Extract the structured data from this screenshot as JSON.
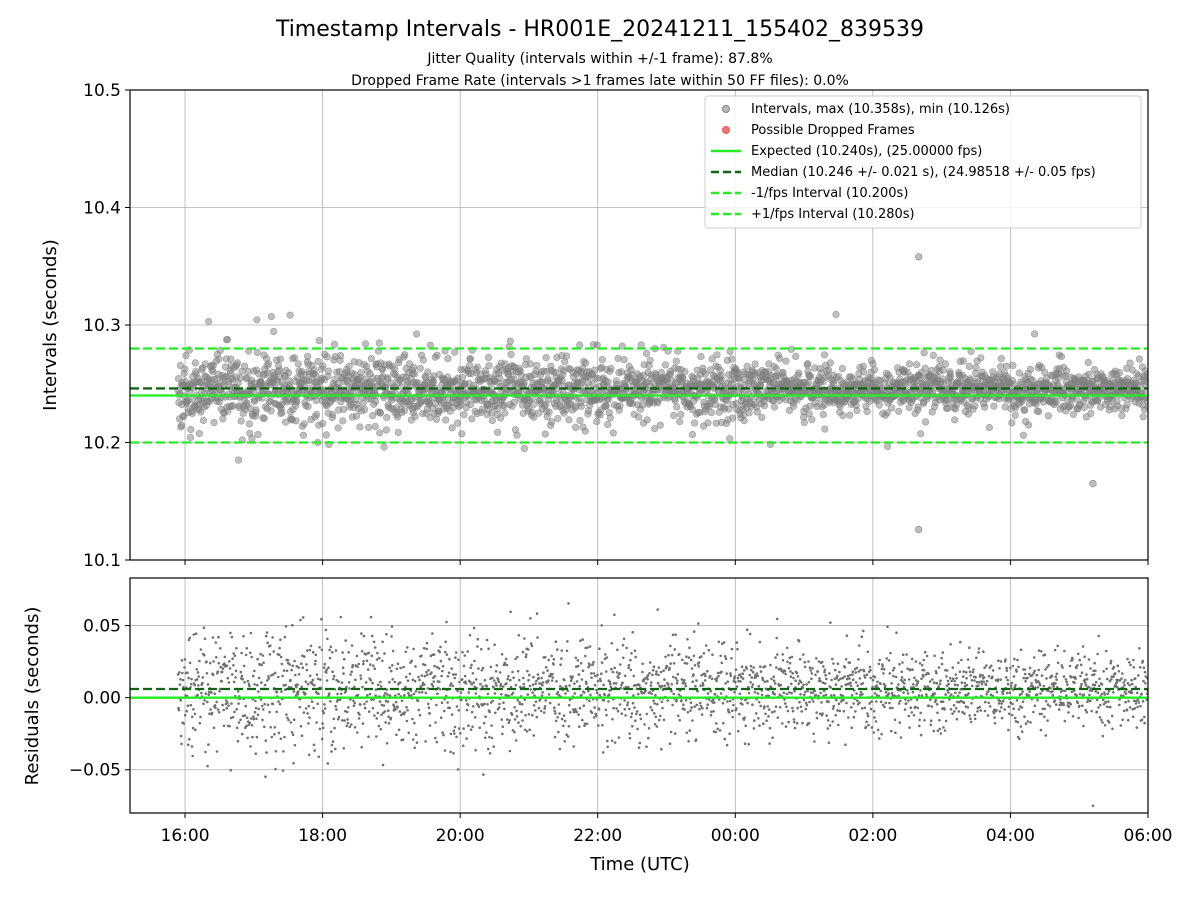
{
  "chart_data": {
    "title": "Timestamp Intervals - HR001E_20241211_155402_839539",
    "subtitle_lines": [
      "Jitter Quality (intervals within +/-1 frame): 87.8%",
      "Dropped Frame Rate (intervals >1 frames late within 50 FF files): 0.0%"
    ],
    "panels": [
      {
        "type": "scatter",
        "name": "intervals",
        "ylabel": "Intervals (seconds)",
        "ylim": [
          10.1,
          10.5
        ],
        "yticks": [
          "10.1",
          "10.2",
          "10.3",
          "10.4",
          "10.5"
        ],
        "ytick_values": [
          10.1,
          10.2,
          10.3,
          10.4,
          10.5
        ],
        "grid": true,
        "legend_position": "top-right",
        "legend": [
          {
            "label": "Intervals, max (10.358s), min (10.126s)",
            "kind": "marker",
            "color": "#808080"
          },
          {
            "label": "Possible Dropped Frames",
            "kind": "marker",
            "color": "#e85a5a"
          },
          {
            "label": "Expected (10.240s), (25.00000 fps)",
            "kind": "line",
            "color": "#22ee22",
            "dash": "solid"
          },
          {
            "label": "Median (10.246 +/- 0.021 s), (24.98518 +/- 0.05 fps)",
            "kind": "line",
            "color": "#116611",
            "dash": "dashed"
          },
          {
            "label": "-1/fps Interval (10.200s)",
            "kind": "line",
            "color": "#22ee22",
            "dash": "dashed"
          },
          {
            "label": "+1/fps Interval (10.280s)",
            "kind": "line",
            "color": "#22ee22",
            "dash": "dashed"
          }
        ],
        "reference_lines": [
          {
            "y": 10.24,
            "color": "#22ee22",
            "dash": "solid"
          },
          {
            "y": 10.246,
            "color": "#116611",
            "dash": "dashed"
          },
          {
            "y": 10.2,
            "color": "#22ee22",
            "dash": "dashed"
          },
          {
            "y": 10.28,
            "color": "#22ee22",
            "dash": "dashed"
          }
        ],
        "series": [
          {
            "label": "Intervals",
            "color": "#808080",
            "center": 10.245,
            "spread": 0.021,
            "count": 2600,
            "max": 10.358,
            "min": 10.126,
            "extremes": [
              {
                "x": "2024-12-12T02:40:00",
                "y": 10.358
              },
              {
                "x": "2024-12-12T02:40:00",
                "y": 10.126
              },
              {
                "x": "2024-12-12T05:12:00",
                "y": 10.165
              }
            ]
          }
        ]
      },
      {
        "type": "scatter",
        "name": "residuals",
        "ylabel": "Residuals (seconds)",
        "ylim": [
          -0.08,
          0.083
        ],
        "yticks": [
          "−0.05",
          "0.00",
          "0.05"
        ],
        "ytick_values": [
          -0.05,
          0.0,
          0.05
        ],
        "grid": true,
        "reference_lines": [
          {
            "y": 0.0,
            "color": "#22ee22",
            "dash": "solid"
          },
          {
            "y": 0.006,
            "color": "#116611",
            "dash": "dashed"
          }
        ],
        "series": [
          {
            "label": "Residuals",
            "color": "#707070",
            "center": 0.005,
            "spread": 0.021,
            "count": 2600,
            "extremes": [
              {
                "x": "2024-12-12T05:12:00",
                "y": -0.075
              }
            ]
          }
        ]
      }
    ],
    "x_axis": {
      "label": "Time (UTC)",
      "type": "time",
      "xlim": [
        "2024-12-11T15:12:00",
        "2024-12-12T06:00:00"
      ],
      "data_start": "2024-12-11T15:54:00",
      "data_end": "2024-12-12T06:00:00",
      "ticks": [
        "16:00",
        "18:00",
        "20:00",
        "22:00",
        "00:00",
        "02:00",
        "04:00",
        "06:00"
      ]
    }
  }
}
